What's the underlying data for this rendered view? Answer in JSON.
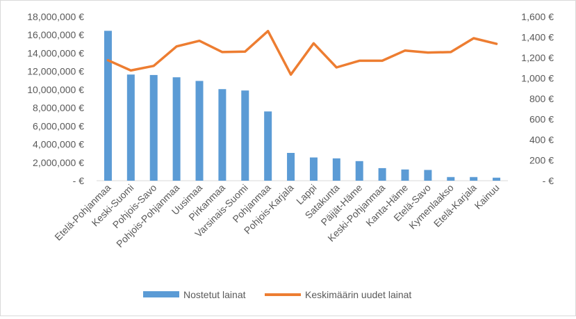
{
  "chart_data": {
    "type": "bar+line",
    "title": "",
    "categories": [
      "Etelä-Pohjanmaa",
      "Keski-Suomi",
      "Pohjois-Savo",
      "Pohjois-Pohjanmaa",
      "Uusimaa",
      "Pirkanmaa",
      "Varsinais-Suomi",
      "Pohjanmaa",
      "Pohjois-Karjala",
      "Lappi",
      "Satakunta",
      "Päijät-Häme",
      "Keski-Pohjanmaa",
      "Kanta-Häme",
      "Etelä-Savo",
      "Kymenlaakso",
      "Etelä-Karjala",
      "Kainuu"
    ],
    "series": [
      {
        "name": "Nostetut lainat",
        "type": "bar",
        "axis": "left",
        "color": "#5b9bd5",
        "values": [
          16450000,
          11650000,
          11600000,
          11350000,
          10950000,
          10050000,
          9900000,
          7600000,
          3050000,
          2550000,
          2450000,
          2150000,
          1380000,
          1230000,
          1180000,
          400000,
          400000,
          330000
        ]
      },
      {
        "name": "Keskimäärin uudet lainat",
        "type": "line",
        "axis": "right",
        "color": "#ed7d31",
        "values": [
          1175,
          1075,
          1120,
          1310,
          1365,
          1255,
          1260,
          1460,
          1035,
          1340,
          1105,
          1170,
          1170,
          1270,
          1250,
          1255,
          1390,
          1335
        ]
      }
    ],
    "y_left": {
      "min": 0,
      "max": 18000000,
      "step": 2000000,
      "ticks": [
        "- €",
        "2,000,000 €",
        "4,000,000 €",
        "6,000,000 €",
        "8,000,000 €",
        "10,000,000 €",
        "12,000,000 €",
        "14,000,000 €",
        "16,000,000 €",
        "18,000,000 €"
      ]
    },
    "y_right": {
      "min": 0,
      "max": 1600,
      "step": 200,
      "ticks": [
        "- €",
        "200 €",
        "400 €",
        "600 €",
        "800 €",
        "1,000 €",
        "1,200 €",
        "1,400 €",
        "1,600 €"
      ]
    },
    "grid": false,
    "legend": "bottom"
  }
}
